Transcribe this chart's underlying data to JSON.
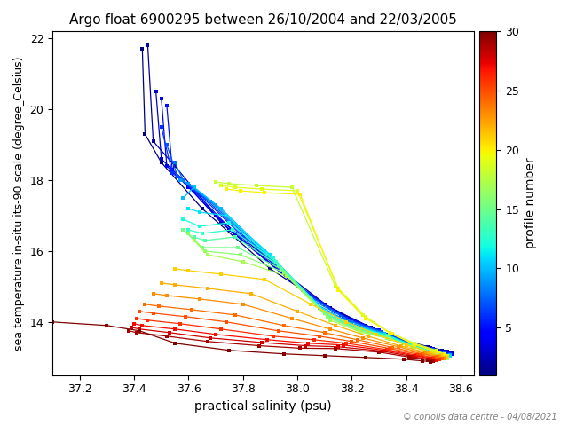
{
  "title": "Argo float 6900295 between 26/10/2004 and 22/03/2005",
  "xlabel": "practical salinity (psu)",
  "ylabel": "sea temperature in-situ its-90 scale (degree_Celsius)",
  "colorbar_label": "profile number",
  "copyright": "© coriolis data centre - 04/08/2021",
  "xlim": [
    37.1,
    38.65
  ],
  "ylim": [
    12.5,
    22.2
  ],
  "xticks": [
    37.2,
    37.4,
    37.6,
    37.8,
    38.0,
    38.2,
    38.4,
    38.6
  ],
  "yticks": [
    14,
    16,
    18,
    20,
    22
  ],
  "cmap": "jet",
  "n_profiles": 30,
  "colorbar_ticks": [
    5,
    10,
    15,
    20,
    25,
    30
  ],
  "profiles": [
    {
      "num": 1,
      "sal": [
        37.43,
        37.44,
        37.5,
        37.65,
        37.9,
        38.1,
        38.25,
        38.38,
        38.48,
        38.53,
        38.55
      ],
      "temp": [
        21.7,
        19.3,
        18.5,
        17.2,
        15.5,
        14.5,
        13.9,
        13.5,
        13.3,
        13.2,
        13.15
      ]
    },
    {
      "num": 2,
      "sal": [
        37.45,
        37.47,
        37.55,
        37.7,
        37.95,
        38.12,
        38.27,
        38.39,
        38.49,
        38.54,
        38.56
      ],
      "temp": [
        21.8,
        19.1,
        18.4,
        17.0,
        15.4,
        14.4,
        13.85,
        13.48,
        13.28,
        13.18,
        13.13
      ]
    },
    {
      "num": 3,
      "sal": [
        37.48,
        37.5,
        37.58,
        37.72,
        37.97,
        38.14,
        38.28,
        38.4,
        38.5,
        38.55,
        38.57
      ],
      "temp": [
        20.5,
        18.6,
        18.0,
        16.8,
        15.2,
        14.3,
        13.8,
        13.45,
        13.25,
        13.16,
        13.12
      ]
    },
    {
      "num": 4,
      "sal": [
        37.5,
        37.52,
        37.6,
        37.75,
        38.0,
        38.16,
        38.29,
        38.41,
        38.5,
        38.55,
        38.57
      ],
      "temp": [
        20.3,
        18.4,
        17.8,
        16.6,
        15.0,
        14.2,
        13.78,
        13.43,
        13.24,
        13.15,
        13.1
      ]
    },
    {
      "num": 5,
      "sal": [
        37.52,
        37.54,
        37.62,
        37.77,
        38.02,
        38.17,
        38.3,
        38.41,
        38.5,
        38.54,
        38.56
      ],
      "temp": [
        20.1,
        18.3,
        17.7,
        16.5,
        14.9,
        14.15,
        13.76,
        13.42,
        13.23,
        13.14,
        13.1
      ]
    },
    {
      "num": 6,
      "sal": [
        37.5,
        37.54,
        37.64,
        37.8,
        38.04,
        38.18,
        38.3,
        38.41,
        38.5,
        38.54,
        38.56
      ],
      "temp": [
        19.5,
        18.2,
        17.6,
        16.4,
        14.8,
        14.1,
        13.74,
        13.41,
        13.22,
        13.13,
        13.09
      ]
    },
    {
      "num": 7,
      "sal": [
        37.52,
        37.56,
        37.66,
        37.82,
        38.05,
        38.19,
        38.31,
        38.41,
        38.5,
        38.54,
        38.56
      ],
      "temp": [
        19.0,
        18.1,
        17.5,
        16.3,
        14.7,
        14.05,
        13.72,
        13.4,
        13.21,
        13.12,
        13.08
      ]
    },
    {
      "num": 8,
      "sal": [
        37.55,
        37.58,
        37.68,
        37.84,
        38.06,
        38.2,
        38.31,
        38.41,
        38.5,
        38.54,
        38.56
      ],
      "temp": [
        18.5,
        18.0,
        17.4,
        16.2,
        14.6,
        14.0,
        13.7,
        13.38,
        13.2,
        13.11,
        13.07
      ]
    },
    {
      "num": 9,
      "sal": [
        37.57,
        37.6,
        37.7,
        37.86,
        38.07,
        38.2,
        38.32,
        38.41,
        38.5,
        38.54,
        38.56
      ],
      "temp": [
        18.0,
        17.9,
        17.3,
        16.1,
        14.5,
        13.95,
        13.68,
        13.37,
        13.19,
        13.1,
        13.06
      ]
    },
    {
      "num": 10,
      "sal": [
        37.58,
        37.62,
        37.72,
        37.88,
        38.08,
        38.21,
        38.32,
        38.42,
        38.5,
        38.54,
        38.56
      ],
      "temp": [
        17.5,
        17.8,
        17.2,
        16.0,
        14.4,
        13.9,
        13.66,
        13.36,
        13.18,
        13.09,
        13.05
      ]
    },
    {
      "num": 11,
      "sal": [
        37.6,
        37.64,
        37.74,
        37.9,
        38.09,
        38.21,
        38.32,
        38.42,
        38.5,
        38.54,
        38.56
      ],
      "temp": [
        17.2,
        17.1,
        17.0,
        15.9,
        14.35,
        13.88,
        13.64,
        13.35,
        13.17,
        13.08,
        13.04
      ]
    },
    {
      "num": 12,
      "sal": [
        37.58,
        37.64,
        37.75,
        37.91,
        38.1,
        38.22,
        38.33,
        38.42,
        38.5,
        38.54,
        38.55
      ],
      "temp": [
        16.9,
        16.7,
        16.8,
        15.8,
        14.3,
        13.85,
        13.62,
        13.34,
        13.16,
        13.07,
        13.03
      ]
    },
    {
      "num": 13,
      "sal": [
        37.6,
        37.65,
        37.76,
        37.92,
        38.1,
        38.22,
        38.33,
        38.42,
        38.5,
        38.54,
        38.55
      ],
      "temp": [
        16.6,
        16.5,
        16.6,
        15.7,
        14.25,
        13.82,
        13.6,
        13.33,
        13.15,
        13.06,
        13.02
      ]
    },
    {
      "num": 14,
      "sal": [
        37.62,
        37.66,
        37.77,
        37.93,
        38.11,
        38.22,
        38.33,
        38.42,
        38.5,
        38.53,
        38.55
      ],
      "temp": [
        16.4,
        16.3,
        16.4,
        15.6,
        14.2,
        13.8,
        13.58,
        13.32,
        13.14,
        13.05,
        13.01
      ]
    },
    {
      "num": 15,
      "sal": [
        37.58,
        37.65,
        37.78,
        37.94,
        38.11,
        38.23,
        38.33,
        38.42,
        38.5,
        38.53,
        38.55
      ],
      "temp": [
        16.6,
        16.1,
        16.1,
        15.5,
        14.15,
        13.78,
        13.56,
        13.31,
        13.13,
        13.04,
        13.0
      ]
    },
    {
      "num": 16,
      "sal": [
        37.6,
        37.66,
        37.79,
        37.95,
        38.12,
        38.23,
        38.33,
        38.42,
        38.5,
        38.53,
        38.55
      ],
      "temp": [
        16.5,
        16.0,
        15.9,
        15.4,
        14.1,
        13.75,
        13.54,
        13.3,
        13.12,
        13.03,
        12.99
      ]
    },
    {
      "num": 17,
      "sal": [
        37.62,
        37.67,
        37.8,
        37.96,
        38.12,
        38.23,
        38.34,
        38.43,
        38.5,
        38.53,
        38.55
      ],
      "temp": [
        16.3,
        15.9,
        15.7,
        15.3,
        14.05,
        13.72,
        13.52,
        13.29,
        13.11,
        13.02,
        12.98
      ]
    },
    {
      "num": 18,
      "sal": [
        37.7,
        37.75,
        37.85,
        37.98,
        38.14,
        38.24,
        38.34,
        38.43,
        38.51,
        38.54,
        38.55
      ],
      "temp": [
        17.95,
        17.9,
        17.85,
        17.8,
        15.0,
        14.2,
        13.7,
        13.4,
        13.2,
        13.1,
        13.05
      ]
    },
    {
      "num": 19,
      "sal": [
        37.72,
        37.77,
        37.87,
        38.0,
        38.15,
        38.25,
        38.34,
        38.43,
        38.51,
        38.54,
        38.55
      ],
      "temp": [
        17.85,
        17.8,
        17.75,
        17.7,
        14.95,
        14.15,
        13.68,
        13.38,
        13.18,
        13.09,
        13.04
      ]
    },
    {
      "num": 20,
      "sal": [
        37.74,
        37.79,
        37.88,
        38.01,
        38.15,
        38.25,
        38.35,
        38.43,
        38.51,
        38.54,
        38.55
      ],
      "temp": [
        17.75,
        17.7,
        17.65,
        17.6,
        14.9,
        14.1,
        13.66,
        13.36,
        13.16,
        13.07,
        13.02
      ]
    },
    {
      "num": 21,
      "sal": [
        37.55,
        37.6,
        37.72,
        37.88,
        38.05,
        38.18,
        38.29,
        38.4,
        38.49,
        38.53,
        38.55
      ],
      "temp": [
        15.5,
        15.45,
        15.35,
        15.2,
        14.5,
        14.0,
        13.65,
        13.35,
        13.15,
        13.06,
        13.02
      ]
    },
    {
      "num": 22,
      "sal": [
        37.5,
        37.55,
        37.67,
        37.83,
        38.0,
        38.14,
        38.26,
        38.38,
        38.48,
        38.52,
        38.54
      ],
      "temp": [
        15.1,
        15.05,
        14.95,
        14.8,
        14.3,
        13.9,
        13.6,
        13.32,
        13.13,
        13.04,
        13.0
      ]
    },
    {
      "num": 23,
      "sal": [
        37.47,
        37.52,
        37.64,
        37.8,
        37.98,
        38.12,
        38.24,
        38.37,
        38.47,
        38.52,
        38.54
      ],
      "temp": [
        14.8,
        14.75,
        14.65,
        14.5,
        14.1,
        13.8,
        13.55,
        13.3,
        13.11,
        13.02,
        12.98
      ]
    },
    {
      "num": 24,
      "sal": [
        37.44,
        37.49,
        37.61,
        37.77,
        37.95,
        38.1,
        38.22,
        38.35,
        38.46,
        38.51,
        38.53
      ],
      "temp": [
        14.5,
        14.45,
        14.35,
        14.2,
        13.9,
        13.7,
        13.5,
        13.28,
        13.1,
        13.01,
        12.97
      ]
    },
    {
      "num": 25,
      "sal": [
        37.42,
        37.47,
        37.59,
        37.74,
        37.93,
        38.08,
        38.2,
        38.34,
        38.45,
        38.5,
        38.52
      ],
      "temp": [
        14.3,
        14.25,
        14.15,
        14.0,
        13.75,
        13.6,
        13.45,
        13.25,
        13.08,
        12.99,
        12.95
      ]
    },
    {
      "num": 26,
      "sal": [
        37.41,
        37.45,
        37.57,
        37.72,
        37.91,
        38.06,
        38.18,
        38.33,
        38.44,
        38.5,
        38.52
      ],
      "temp": [
        14.1,
        14.05,
        13.95,
        13.8,
        13.6,
        13.5,
        13.4,
        13.22,
        13.06,
        12.98,
        12.94
      ]
    },
    {
      "num": 27,
      "sal": [
        37.4,
        37.43,
        37.55,
        37.7,
        37.89,
        38.04,
        38.17,
        38.32,
        38.43,
        38.49,
        38.51
      ],
      "temp": [
        13.95,
        13.9,
        13.8,
        13.65,
        13.5,
        13.4,
        13.35,
        13.2,
        13.05,
        12.97,
        12.93
      ]
    },
    {
      "num": 28,
      "sal": [
        37.39,
        37.42,
        37.53,
        37.68,
        37.87,
        38.03,
        38.15,
        38.31,
        38.42,
        38.48,
        38.5
      ],
      "temp": [
        13.85,
        13.8,
        13.7,
        13.55,
        13.42,
        13.33,
        13.3,
        13.18,
        13.03,
        12.95,
        12.91
      ]
    },
    {
      "num": 29,
      "sal": [
        37.38,
        37.41,
        37.52,
        37.67,
        37.86,
        38.01,
        38.14,
        38.3,
        38.41,
        38.48,
        38.5
      ],
      "temp": [
        13.75,
        13.7,
        13.6,
        13.45,
        13.33,
        13.26,
        13.25,
        13.15,
        13.01,
        12.93,
        12.89
      ]
    },
    {
      "num": 30,
      "sal": [
        37.1,
        37.3,
        37.42,
        37.55,
        37.75,
        37.95,
        38.1,
        38.25,
        38.39,
        38.46,
        38.49
      ],
      "temp": [
        14.0,
        13.9,
        13.75,
        13.4,
        13.2,
        13.1,
        13.05,
        13.0,
        12.95,
        12.9,
        12.88
      ]
    }
  ]
}
